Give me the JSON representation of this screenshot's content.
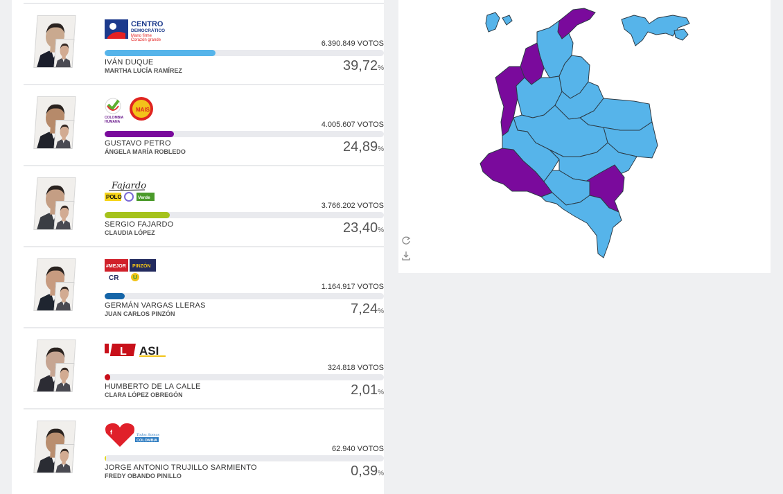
{
  "candidates": [
    {
      "name": "IVÁN DUQUE",
      "running_mate": "MARTHA LUCÍA RAMÍREZ",
      "votes_label": "6.390.849 VOTOS",
      "percent": "39,72",
      "percent_value": 39.72,
      "bar_color": "#56b4ea",
      "party_logo": {
        "title": "CENTRO",
        "subtitle": "DEMOCRÁTICO",
        "slogan1": "Mano firme",
        "slogan2": "Corazón grande"
      }
    },
    {
      "name": "GUSTAVO PETRO",
      "running_mate": "ÁNGELA MARÍA ROBLEDO",
      "votes_label": "4.005.607 VOTOS",
      "percent": "24,89",
      "percent_value": 24.89,
      "bar_color": "#7a0a9c",
      "party_logo": {
        "title": "COLOMBIA HUMANA",
        "second": "MAIS"
      }
    },
    {
      "name": "SERGIO FAJARDO",
      "running_mate": "CLAUDIA LÓPEZ",
      "votes_label": "3.766.202 VOTOS",
      "percent": "23,40",
      "percent_value": 23.4,
      "bar_color": "#a5c21b",
      "party_logo": {
        "signature": "Fajardo",
        "polo": "POLO",
        "verde": "Verde"
      }
    },
    {
      "name": "GERMÁN VARGAS LLERAS",
      "running_mate": "JUAN CARLOS PINZÓN",
      "votes_label": "1.164.917 VOTOS",
      "percent": "7,24",
      "percent_value": 7.24,
      "bar_color": "#1565a8",
      "party_logo": {
        "first": "#MEJOR",
        "second": "PINZÓN",
        "third": "CR",
        "fourth": "U"
      }
    },
    {
      "name": "HUMBERTO DE LA CALLE",
      "running_mate": "CLARA LÓPEZ OBREGÓN",
      "votes_label": "324.818 VOTOS",
      "percent": "2,01",
      "percent_value": 2.01,
      "bar_color": "#c8101a",
      "party_logo": {
        "first": "L",
        "second": "ASI"
      }
    },
    {
      "name": "JORGE ANTONIO TRUJILLO SARMIENTO",
      "running_mate": "FREDY OBANDO PINILLO",
      "votes_label": "62.940 VOTOS",
      "percent": "0,39",
      "percent_value": 0.39,
      "bar_color": "#e3d81d",
      "party_logo": {
        "first": "Todos Somos",
        "second": "COLOMBIA"
      }
    }
  ],
  "percent_sign": "%",
  "map": {
    "winner_colors": {
      "duque": "#56b4ea",
      "petro": "#7a0a9c",
      "fajardo": "#c7d12a"
    },
    "tools": [
      "refresh-icon",
      "download-icon"
    ]
  }
}
